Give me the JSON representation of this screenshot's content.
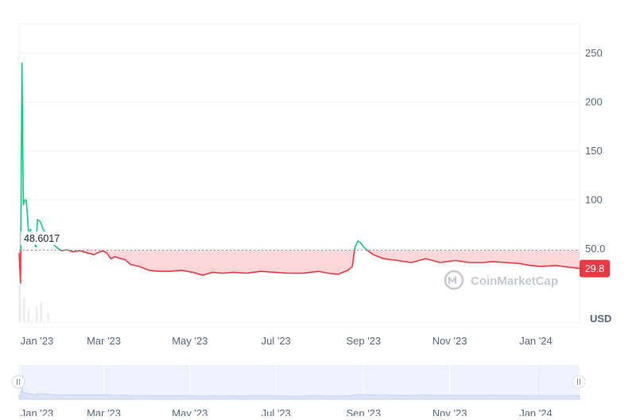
{
  "colors": {
    "above": "#16c784",
    "below": "#ea3943",
    "baseline_label_bg": "#ffffff",
    "current_badge_bg": "#ea3943",
    "grid": "#eff2f5",
    "axis_text": "#58667e",
    "volume": "#e6e8ec",
    "navigator_bg": "#eef2fc",
    "navigator_line": "#c9d3ef"
  },
  "watermark": {
    "text": "CoinMarketCap",
    "icon": "coinmarketcap-logo-icon"
  },
  "currency_label": "USD",
  "baseline": {
    "value": 48.6017,
    "label": "48.6017"
  },
  "current": {
    "value": 29.8,
    "label": "29.8"
  },
  "navigator": {
    "left_handle_icon": "grip-handle-icon",
    "right_handle_icon": "grip-handle-icon"
  },
  "chart_data": {
    "type": "line",
    "title": "",
    "xlabel": "",
    "ylabel": "USD",
    "ylim": [
      -25,
      280
    ],
    "yticks": [
      50,
      100,
      150,
      200,
      250
    ],
    "ytick_labels": [
      "50.0",
      "100",
      "150",
      "200",
      "250"
    ],
    "xlim": [
      "2022-12-31",
      "2024-02-01"
    ],
    "xticks": [
      {
        "date": "2023-01-01",
        "label": "Jan '23"
      },
      {
        "date": "2023-03-01",
        "label": "Mar '23"
      },
      {
        "date": "2023-05-01",
        "label": "May '23"
      },
      {
        "date": "2023-07-01",
        "label": "Jul '23"
      },
      {
        "date": "2023-09-01",
        "label": "Sep '23"
      },
      {
        "date": "2023-11-01",
        "label": "Nov '23"
      },
      {
        "date": "2024-01-01",
        "label": "Jan '24"
      }
    ],
    "grid": true,
    "series": [
      {
        "x": [
          "2022-12-31",
          "2023-01-01",
          "2023-01-02",
          "2023-01-03",
          "2023-01-04",
          "2023-01-05",
          "2023-01-06",
          "2023-01-07",
          "2023-01-08",
          "2023-01-10",
          "2023-01-12",
          "2023-01-13",
          "2023-01-15",
          "2023-01-17",
          "2023-01-18",
          "2023-01-20",
          "2023-01-23",
          "2023-01-27",
          "2023-01-30",
          "2023-02-03",
          "2023-02-07",
          "2023-02-12",
          "2023-02-17",
          "2023-02-22",
          "2023-02-28",
          "2023-03-03",
          "2023-03-06",
          "2023-03-09",
          "2023-03-13",
          "2023-03-16",
          "2023-03-20",
          "2023-03-26",
          "2023-04-02",
          "2023-04-09",
          "2023-04-17",
          "2023-04-25",
          "2023-05-03",
          "2023-05-10",
          "2023-05-17",
          "2023-05-24",
          "2023-06-01",
          "2023-06-10",
          "2023-06-20",
          "2023-06-30",
          "2023-07-10",
          "2023-07-20",
          "2023-07-31",
          "2023-08-07",
          "2023-08-14",
          "2023-08-21",
          "2023-08-24",
          "2023-08-26",
          "2023-08-28",
          "2023-08-30",
          "2023-09-01",
          "2023-09-04",
          "2023-09-08",
          "2023-09-15",
          "2023-09-25",
          "2023-10-05",
          "2023-10-15",
          "2023-10-20",
          "2023-10-25",
          "2023-11-05",
          "2023-11-15",
          "2023-11-25",
          "2023-12-01",
          "2023-12-10",
          "2023-12-20",
          "2023-12-28",
          "2024-01-05",
          "2024-01-15",
          "2024-01-25",
          "2024-02-01"
        ],
        "y": [
          46,
          15,
          240,
          95,
          100,
          100,
          82,
          60,
          70,
          56,
          52,
          80,
          78,
          70,
          68,
          62,
          56,
          51,
          48,
          49,
          47,
          48,
          46,
          44,
          48,
          46,
          40,
          42,
          40,
          39,
          34,
          32,
          28,
          27,
          27,
          28,
          26,
          23,
          26,
          25,
          26,
          25,
          27,
          26,
          25,
          25,
          27,
          25,
          24,
          28,
          32,
          52,
          58,
          56,
          52,
          48,
          44,
          40,
          38,
          36,
          40,
          38,
          36,
          38,
          36,
          36,
          37,
          36,
          35,
          33,
          32,
          33,
          31,
          30
        ]
      }
    ],
    "volume_approx": [
      {
        "date": "2022-12-31",
        "value": 0.9
      },
      {
        "date": "2023-01-03",
        "value": 0.6
      },
      {
        "date": "2023-01-06",
        "value": 0.3
      },
      {
        "date": "2023-01-12",
        "value": 0.35
      },
      {
        "date": "2023-01-15",
        "value": 0.5
      },
      {
        "date": "2023-01-20",
        "value": 0.2
      }
    ]
  }
}
